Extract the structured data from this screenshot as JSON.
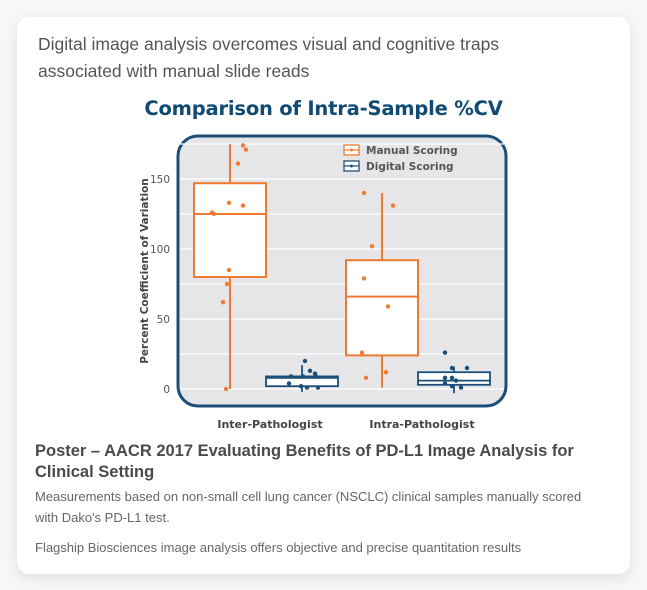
{
  "card": {
    "headline": "Digital image analysis overcomes visual and cognitive traps associated with manual slide reads",
    "poster_title": "Poster – AACR 2017 Evaluating Benefits of PD-L1 Image Analysis for Clinical Setting",
    "description": "Measurements based on non-small cell lung cancer (NSCLC) clinical samples manually scored with Dako's PD-L1 test.",
    "footer": "Flagship Biosciences image analysis offers objective and precise quantitation results"
  },
  "colors": {
    "manual": "#ee7b30",
    "digital": "#1b4e79",
    "panel_bg": "#e6e6e8",
    "panel_border": "#1b4e79",
    "title": "#114a72"
  },
  "chart_data": {
    "type": "box",
    "title": "Comparison of Intra-Sample %CV",
    "xlabel": "",
    "ylabel": "Percent Coefficient of Variation",
    "ylim": [
      -12,
      180
    ],
    "yticks": [
      0,
      50,
      100,
      150
    ],
    "grid_step": 25,
    "grid": true,
    "legend_position": "top-right",
    "categories": [
      "Inter-Pathologist",
      "Intra-Pathologist"
    ],
    "series": [
      {
        "name": "Manual Scoring",
        "color": "#ee7b30",
        "boxes": [
          {
            "category": "Inter-Pathologist",
            "whisker_low": 0,
            "q1": 80,
            "median": 125,
            "q3": 147,
            "whisker_high": 175,
            "points": [
              174,
              171,
              161,
              133,
              131,
              126,
              125,
              85,
              75,
              62,
              0
            ]
          },
          {
            "category": "Intra-Pathologist",
            "whisker_low": 1,
            "q1": 24,
            "median": 66,
            "q3": 92,
            "whisker_high": 140,
            "points": [
              140,
              131,
              102,
              79,
              59,
              26,
              12,
              8
            ]
          }
        ]
      },
      {
        "name": "Digital Scoring",
        "color": "#1b4e79",
        "boxes": [
          {
            "category": "Inter-Pathologist",
            "whisker_low": -2,
            "q1": 2,
            "median": 8,
            "q3": 9,
            "whisker_high": 17,
            "points": [
              20,
              13,
              11,
              9,
              9,
              9,
              4,
              2,
              1,
              1
            ]
          },
          {
            "category": "Intra-Pathologist",
            "whisker_low": -3,
            "q1": 3,
            "median": 6,
            "q3": 12,
            "whisker_high": 16,
            "points": [
              26,
              15,
              15,
              8,
              8,
              6,
              4,
              2,
              1
            ]
          }
        ]
      }
    ]
  }
}
